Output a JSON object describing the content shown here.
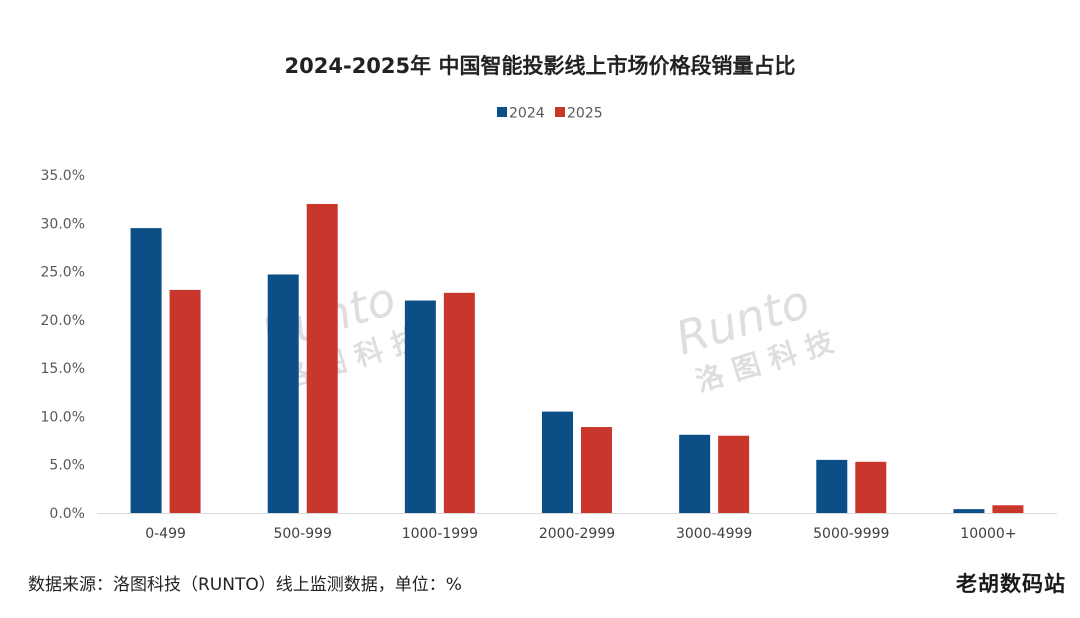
{
  "chart_data": {
    "type": "bar",
    "title": "2024-2025年 中国智能投影线上市场价格段销量占比",
    "categories": [
      "0-499",
      "500-999",
      "1000-1999",
      "2000-2999",
      "3000-4999",
      "5000-9999",
      "10000+"
    ],
    "series": [
      {
        "name": "2024",
        "color": "#0b4f86",
        "values": [
          29.5,
          24.7,
          22.0,
          10.5,
          8.1,
          5.5,
          0.4
        ]
      },
      {
        "name": "2025",
        "color": "#c9372c",
        "values": [
          23.1,
          32.0,
          22.8,
          8.9,
          8.0,
          5.3,
          0.8
        ]
      }
    ],
    "ylim": [
      0,
      35
    ],
    "yticks": [
      "35.0%",
      "30.0%",
      "25.0%",
      "20.0%",
      "15.0%",
      "10.0%",
      "5.0%",
      "0.0%"
    ],
    "ytick_values": [
      35,
      30,
      25,
      20,
      15,
      10,
      5,
      0
    ],
    "xlabel": "",
    "ylabel": "",
    "grid": false,
    "legend_position": "top-center"
  },
  "watermark": {
    "latin": "Runto",
    "chinese": "洛图科技"
  },
  "source_note": "数据来源：洛图科技（RUNTO）线上监测数据，单位：%",
  "corner_mark": "老胡数码站"
}
